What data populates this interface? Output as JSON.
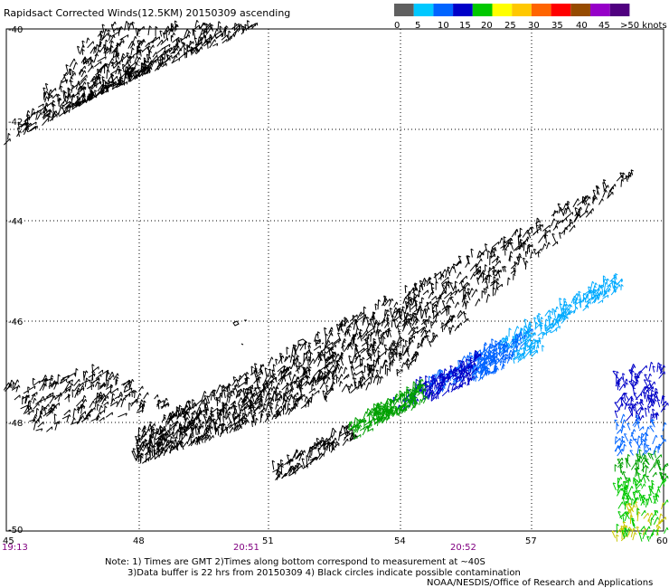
{
  "title": "Rapidsact Corrected Winds(12.5KM) 20150309 ascending",
  "legend": {
    "labels": [
      "0",
      "5",
      "10",
      "15",
      "20",
      "25",
      "30",
      "35",
      "40",
      "45",
      ">50 knots"
    ],
    "colors": [
      "#606060",
      "#00c8ff",
      "#0064ff",
      "#0000c8",
      "#00c800",
      "#ffff00",
      "#ffc800",
      "#ff6400",
      "#ff0000",
      "#964b00",
      "#9600c8",
      "#500080"
    ]
  },
  "axes": {
    "lat_labels": [
      "-40",
      "-42",
      "-44",
      "-46",
      "-48",
      "-50"
    ],
    "lon_labels": [
      "45",
      "48",
      "51",
      "54",
      "57",
      "60"
    ]
  },
  "times": [
    "19:13",
    "20:51",
    "20:52"
  ],
  "notes": {
    "line1": "Note: 1) Times are GMT 2)Times along bottom correspond to measurement at ~40S",
    "line2": "3)Data buffer is 22 hrs from 20150309 4) Black circles indicate possible contamination",
    "credit": "NOAA/NESDIS/Office of Research and Applications"
  }
}
